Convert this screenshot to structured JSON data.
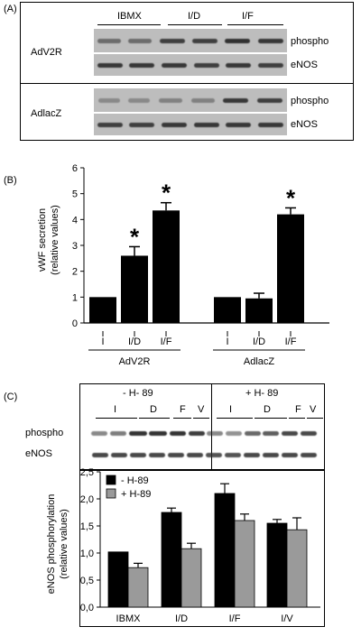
{
  "panel_a": {
    "label": "(A)",
    "top_group": "AdV2R",
    "bottom_group": "AdlacZ",
    "treatments": [
      "IBMX",
      "I/D",
      "I/F"
    ],
    "row_labels": [
      "phospho",
      "eNOS"
    ]
  },
  "panel_b": {
    "label": "(B)",
    "groups": [
      "AdV2R",
      "AdlacZ"
    ],
    "significance_mark": "*"
  },
  "panel_c": {
    "label": "(C)",
    "blot_groups": [
      "- H- 89",
      "+ H- 89"
    ],
    "lane_labels": [
      "I",
      "D",
      "F",
      "V"
    ],
    "row_labels": [
      "phospho",
      "eNOS"
    ]
  },
  "chart_data": [
    {
      "type": "bar",
      "categories": [
        "I",
        "I/D",
        "I/F",
        "I",
        "I/D",
        "I/F"
      ],
      "group_labels": [
        "AdV2R",
        "AdlacZ"
      ],
      "values": [
        1.0,
        2.6,
        4.35,
        1.0,
        0.95,
        4.2
      ],
      "errors": [
        0,
        0.35,
        0.3,
        0,
        0.2,
        0.25
      ],
      "significant": [
        false,
        true,
        true,
        false,
        false,
        true
      ],
      "ylabel_lines": [
        "vWF secretion",
        "(relative values)"
      ],
      "yticks": [
        "0",
        "1",
        "2",
        "3",
        "4",
        "5",
        "6"
      ],
      "ylim": [
        0,
        6
      ]
    },
    {
      "type": "bar",
      "categories": [
        "IBMX",
        "I/D",
        "I/F",
        "I/V"
      ],
      "series": [
        {
          "name": "- H-89",
          "values": [
            1.02,
            1.75,
            2.1,
            1.55
          ],
          "errors": [
            0,
            0.08,
            0.18,
            0.07
          ],
          "color": "#000000"
        },
        {
          "name": "+ H-89",
          "values": [
            0.73,
            1.08,
            1.6,
            1.43
          ],
          "errors": [
            0.08,
            0.1,
            0.12,
            0.22
          ],
          "color": "#9a9a9a"
        }
      ],
      "ylabel_lines": [
        "eNOS phosphorylation",
        "(relative values)"
      ],
      "yticks": [
        "0,0",
        "0,5",
        "1,0",
        "1,5",
        "2,0",
        "2,5"
      ],
      "ylim": [
        0,
        2.5
      ],
      "legend": "top-left"
    }
  ]
}
